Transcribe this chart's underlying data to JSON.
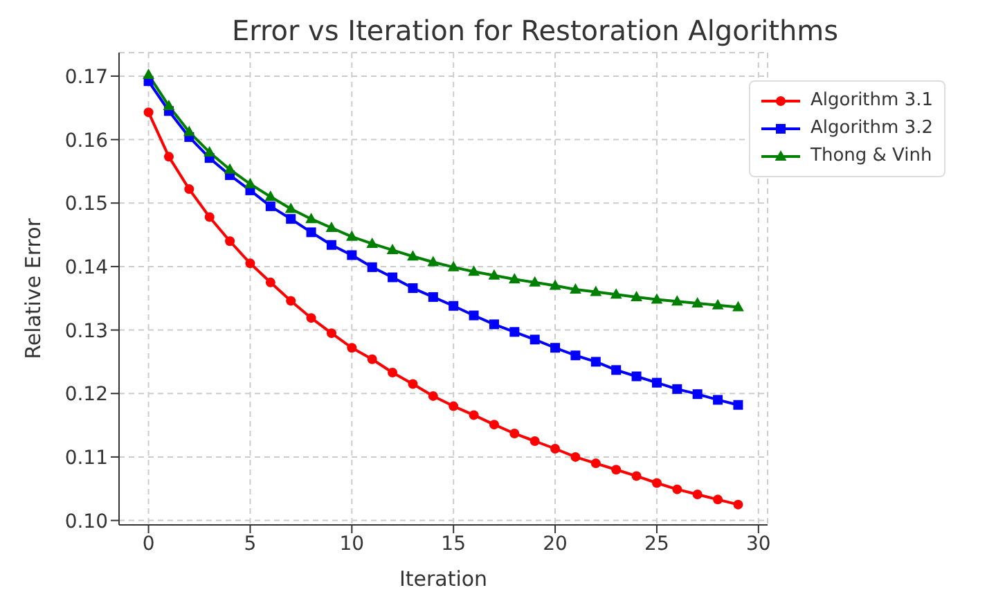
{
  "chart_data": {
    "type": "line",
    "title": "Error vs Iteration for Restoration Algorithms",
    "xlabel": "Iteration",
    "ylabel": "Relative Error",
    "x": [
      0,
      1,
      2,
      3,
      4,
      5,
      6,
      7,
      8,
      9,
      10,
      11,
      12,
      13,
      14,
      15,
      16,
      17,
      18,
      19,
      20,
      21,
      22,
      23,
      24,
      25,
      26,
      27,
      28,
      29
    ],
    "series": [
      {
        "name": "Algorithm 3.1",
        "color": "#ff0000",
        "marker": "circle",
        "values": [
          0.1643,
          0.1573,
          0.1522,
          0.1478,
          0.144,
          0.1405,
          0.1375,
          0.1346,
          0.1319,
          0.1295,
          0.1272,
          0.1254,
          0.1233,
          0.1215,
          0.1196,
          0.118,
          0.1166,
          0.1151,
          0.1137,
          0.1125,
          0.1113,
          0.11,
          0.109,
          0.108,
          0.107,
          0.1059,
          0.1049,
          0.1041,
          0.1033,
          0.1025
        ]
      },
      {
        "name": "Algorithm 3.2",
        "color": "#0000ff",
        "marker": "square",
        "values": [
          0.1692,
          0.1645,
          0.1604,
          0.1571,
          0.1544,
          0.152,
          0.1495,
          0.1475,
          0.1454,
          0.1434,
          0.1418,
          0.1399,
          0.1383,
          0.1366,
          0.1352,
          0.1338,
          0.1323,
          0.1309,
          0.1297,
          0.1285,
          0.1272,
          0.126,
          0.125,
          0.1237,
          0.1227,
          0.1217,
          0.1207,
          0.1199,
          0.119,
          0.1182
        ]
      },
      {
        "name": "Thong & Vinh",
        "color": "#008000",
        "marker": "triangle",
        "values": [
          0.1702,
          0.1653,
          0.1612,
          0.158,
          0.1553,
          0.153,
          0.151,
          0.1491,
          0.1475,
          0.1461,
          0.1447,
          0.1436,
          0.1426,
          0.1416,
          0.1407,
          0.1399,
          0.1392,
          0.1386,
          0.138,
          0.1375,
          0.137,
          0.1364,
          0.136,
          0.1356,
          0.1352,
          0.1348,
          0.1345,
          0.1342,
          0.1339,
          0.1336
        ]
      }
    ],
    "xlim": [
      -1.45,
      30.45
    ],
    "xticks": [
      0,
      5,
      10,
      15,
      20,
      25,
      30
    ],
    "ylim": [
      0.0993,
      0.1737
    ],
    "yticks": [
      {
        "value": 0.1,
        "label": "0.10"
      },
      0.11,
      0.12,
      0.13,
      0.14,
      0.15,
      0.16,
      0.17
    ],
    "grid": true,
    "legend": "top right",
    "line_style": "solid"
  }
}
